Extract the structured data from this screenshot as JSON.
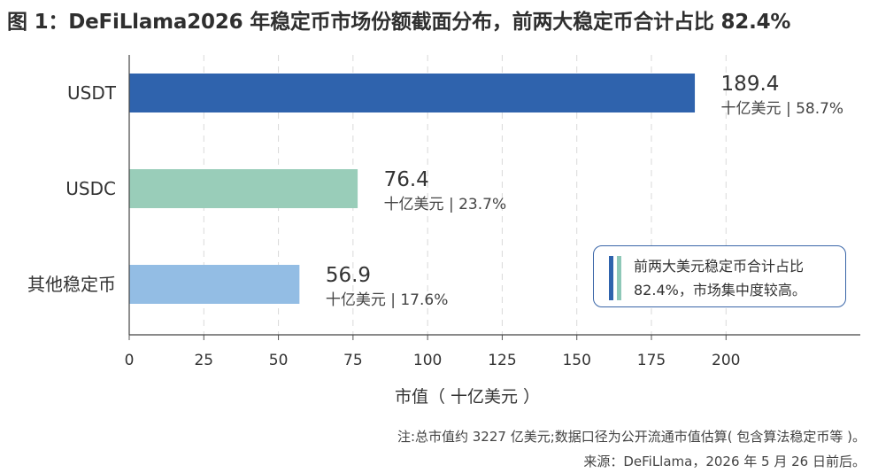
{
  "title": "图 1：DeFiLlama2026 年稳定币市场份额截面分布，前两大稳定币合计占比 82.4%",
  "chart_data": {
    "type": "bar",
    "orientation": "horizontal",
    "categories": [
      "USDT",
      "USDC",
      "其他稳定币"
    ],
    "values": [
      189.4,
      76.4,
      56.9
    ],
    "value_labels": [
      "189.4",
      "76.4",
      "56.9"
    ],
    "sub_labels": [
      "十亿美元 | 58.7%",
      "十亿美元 | 23.7%",
      "十亿美元 | 17.6%"
    ],
    "bar_colors": [
      "#2f63ad",
      "#99cdb9",
      "#93bde4"
    ],
    "xlabel": "市值（ 十亿美元 ）",
    "ylabel": "",
    "xlim": [
      0,
      245
    ],
    "xticks": [
      0,
      25,
      50,
      75,
      100,
      125,
      150,
      175,
      200
    ],
    "xtick_labels": [
      "0",
      "25",
      "50",
      "75",
      "100",
      "125",
      "150",
      "175",
      "200"
    ],
    "grid": "vertical dashed"
  },
  "callout": {
    "line1": "前两大美元稳定币合计占比",
    "line2": "82.4%，市场集中度较高。",
    "accent_colors": [
      "#2f63ad",
      "#8ec8b8"
    ],
    "border_color": "#3a66a8"
  },
  "note": "注:总市值约 3227 亿美元;数据口径为公开流通市值估算( 包含算法稳定币等 )。",
  "source": "来源：DeFiLlama，2026 年 5 月 26 日前后。"
}
